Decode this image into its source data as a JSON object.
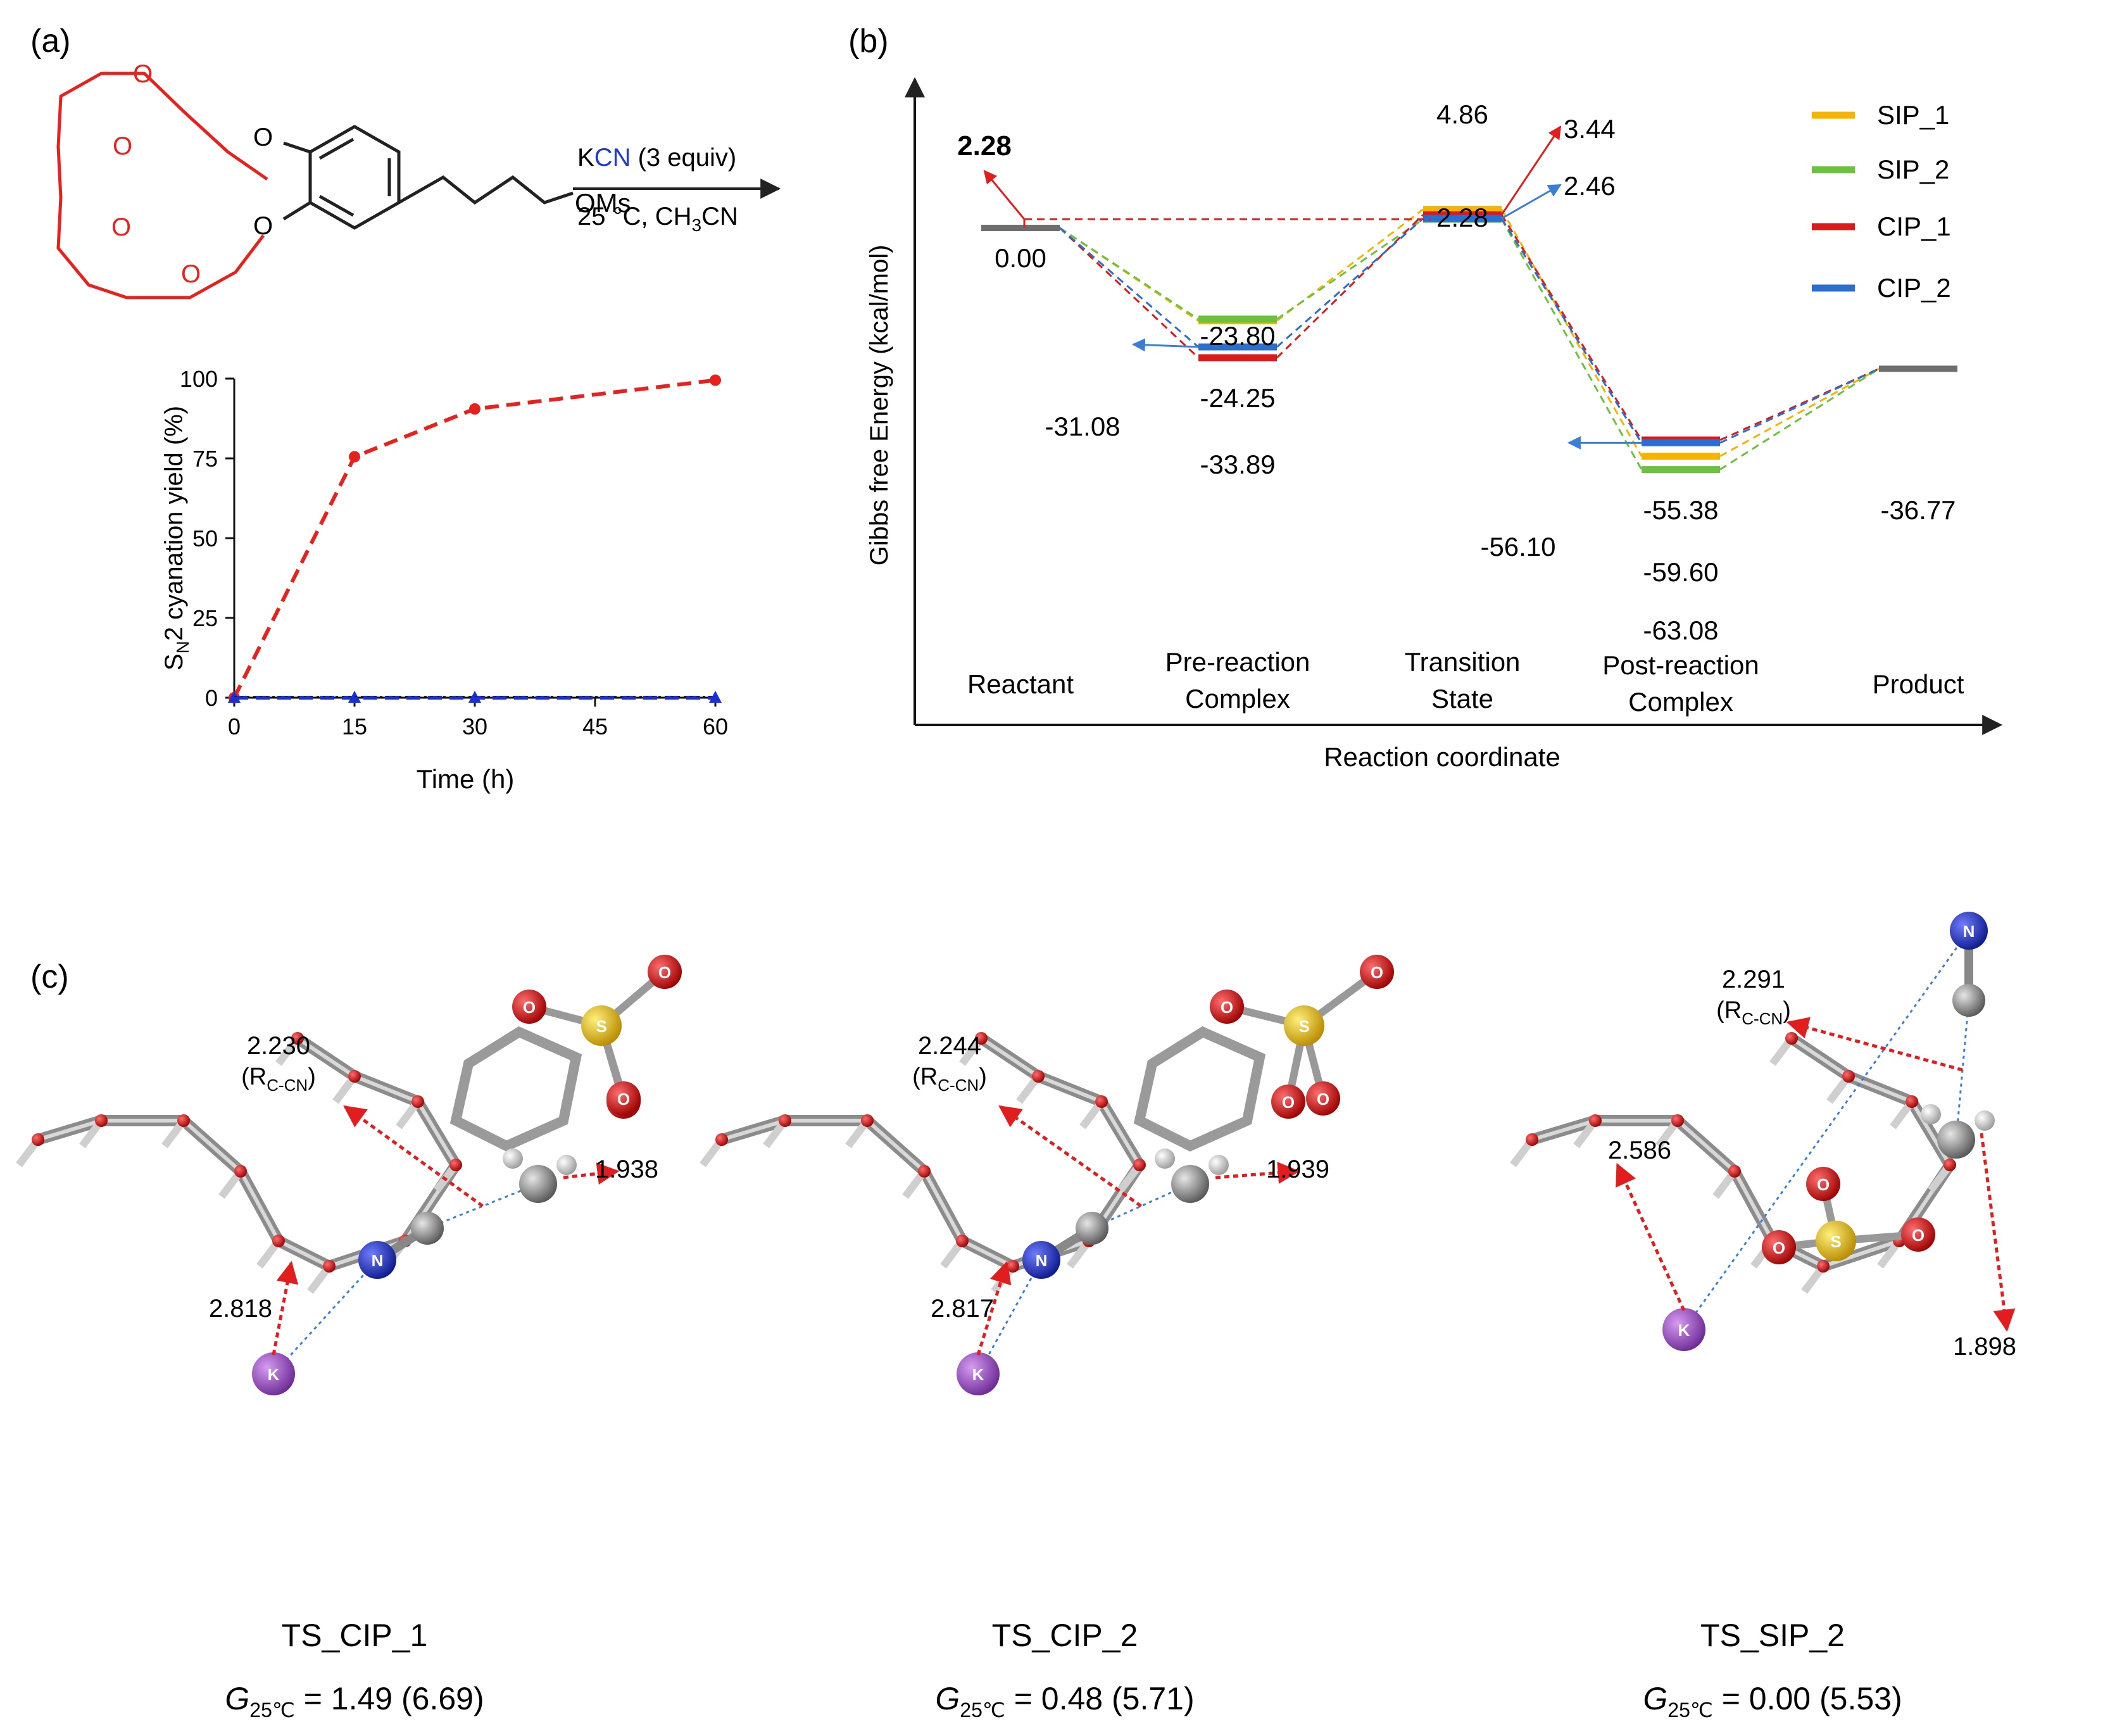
{
  "panel_labels": {
    "a": "(a)",
    "b": "(b)",
    "c": "(c)"
  },
  "scheme": {
    "reagent_k": "K",
    "reagent_cn": "CN",
    "reagent_rest": " (3 equiv)",
    "conditions_temp": "25 °C, CH",
    "conditions_sub": "3",
    "conditions_end": "CN",
    "oxygen": "O",
    "leaving_group": "OMs",
    "colors": {
      "crown": "#e8211d",
      "cn": "#1f3ad0",
      "bond": "#222222"
    }
  },
  "chart_data": [
    {
      "type": "line",
      "ylabel_pre": "S",
      "ylabel_sub": "N",
      "ylabel_post": "2 cyanation yield (%)",
      "xlabel": "Time (h)",
      "x_ticks": [
        0,
        15,
        30,
        45,
        60
      ],
      "y_ticks": [
        0,
        25,
        50,
        75,
        100
      ],
      "xlim": [
        0,
        60
      ],
      "ylim": [
        0,
        100
      ],
      "series": [
        {
          "name": "red",
          "color": "#e8211d",
          "x": [
            0,
            15,
            30,
            60
          ],
          "y": [
            0,
            75.5,
            90.5,
            99.5
          ]
        },
        {
          "name": "blue",
          "color": "#1a2fd6",
          "x": [
            0,
            15,
            30,
            60
          ],
          "y": [
            0,
            0,
            0,
            0
          ]
        }
      ]
    },
    {
      "type": "energy-profile",
      "ylabel": "Gibbs free Energy (kcal/mol)",
      "xlabel": "Reaction coordinate",
      "stages": [
        "Reactant",
        "Pre-reaction Complex",
        "Transition State",
        "Post-reaction Complex",
        "Product"
      ],
      "series": [
        {
          "name": "SIP_1",
          "color": "#f5b400",
          "values": [
            0.0,
            -24.25,
            4.86,
            -59.6,
            -36.77
          ]
        },
        {
          "name": "SIP_2",
          "color": "#6cc13d",
          "values": [
            0.0,
            -23.8,
            2.28,
            -63.08,
            -36.77
          ]
        },
        {
          "name": "CIP_1",
          "color": "#dc1a1a",
          "values": [
            0.0,
            -33.89,
            3.44,
            -55.38,
            -36.77
          ]
        },
        {
          "name": "CIP_2",
          "color": "#2a6fcf",
          "values": [
            0.0,
            -31.08,
            2.46,
            -56.1,
            -36.77
          ]
        }
      ],
      "labels": {
        "reactant_top": "2.28",
        "reactant": "0.00",
        "pre_sip2": "-23.80",
        "pre_sip1": "-24.25",
        "pre_cip2": "-31.08",
        "pre_cip1": "-33.89",
        "ts_sip1": "4.86",
        "ts_cip1": "3.44",
        "ts_cip2": "2.46",
        "ts_sip2": "2.28",
        "post_cip1": "-55.38",
        "post_cip2": "-56.10",
        "post_sip1": "-59.60",
        "post_sip2": "-63.08",
        "product": "-36.77"
      },
      "gray_color": "#6e6e6e"
    }
  ],
  "structures": [
    {
      "name": "TS_CIP_1",
      "g_prefix": "G",
      "g_sub": "25℃",
      "g_value": " = 1.49 (6.69)",
      "rcc": "2.230",
      "rcc_r": "(R",
      "rcc_sub": "C-CN",
      "rcc_close": ")",
      "d_o": "1.938",
      "d_k": "2.818"
    },
    {
      "name": "TS_CIP_2",
      "g_prefix": "G",
      "g_sub": "25℃",
      "g_value": " = 0.48 (5.71)",
      "rcc": "2.244",
      "rcc_r": "(R",
      "rcc_sub": "C-CN",
      "rcc_close": ")",
      "d_o": "1.939",
      "d_k": "2.817"
    },
    {
      "name": "TS_SIP_2",
      "g_prefix": "G",
      "g_sub": "25℃",
      "g_value": " = 0.00 (5.53)",
      "rcc": "2.291",
      "rcc_r": "(R",
      "rcc_sub": "C-CN",
      "rcc_close": ")",
      "d_o": "1.898",
      "d_k": "2.586"
    }
  ],
  "atoms": {
    "N": "N",
    "K": "K",
    "S": "S",
    "O": "O"
  },
  "atom_colors": {
    "N": "#1a2fb8",
    "K": "#9a3fc7",
    "S": "#e0b400",
    "O": "#d40c0c",
    "C": "#8a8a8a",
    "H": "#dcdcdc"
  }
}
